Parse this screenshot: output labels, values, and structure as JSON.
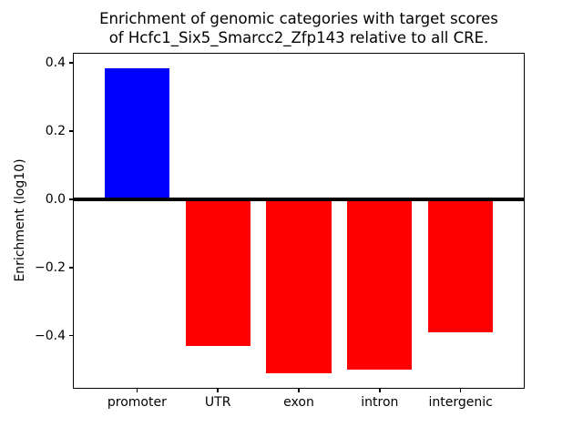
{
  "figure": {
    "title": "Enrichment of genomic categories with target scores\nof Hcfc1_Six5_Smarcc2_Zfp143 relative to all CRE.",
    "ylabel": "Enrichment (log10)"
  },
  "chart_data": {
    "type": "bar",
    "title": "Enrichment of genomic categories with target scores\nof Hcfc1_Six5_Smarcc2_Zfp143 relative to all CRE.",
    "xlabel": "",
    "ylabel": "Enrichment (log10)",
    "categories": [
      "promoter",
      "UTR",
      "exon",
      "intron",
      "intergenic"
    ],
    "values": [
      0.385,
      -0.43,
      -0.51,
      -0.5,
      -0.39
    ],
    "bar_colors": [
      "#0000ff",
      "#ff0000",
      "#ff0000",
      "#ff0000",
      "#ff0000"
    ],
    "positive_color": "#0000ff",
    "negative_color": "#ff0000",
    "ylim": [
      -0.556,
      0.43
    ],
    "yticks": [
      0.4,
      0.2,
      0.0,
      -0.2,
      -0.4
    ],
    "ytick_labels": [
      "0.4",
      "0.2",
      "0.0",
      "−0.2",
      "−0.4"
    ],
    "zero_line": {
      "y": 0.0,
      "color": "#000000"
    },
    "bar_width_fraction": 0.8,
    "grid": false,
    "legend": null,
    "background": "#ffffff",
    "frame_color": "#000000"
  }
}
